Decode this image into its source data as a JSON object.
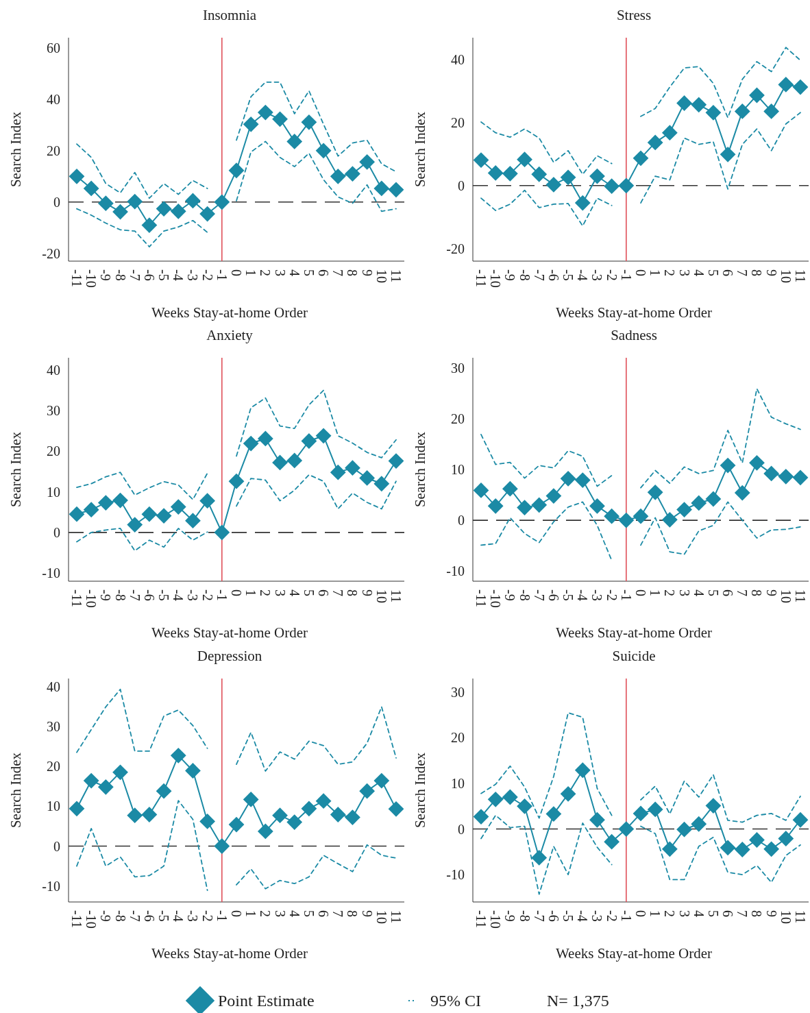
{
  "chart_data": [
    {
      "type": "line",
      "title": "Insomnia",
      "xlabel": "Weeks Stay-at-home Order",
      "ylabel": "Search Index",
      "categories": [
        "-11",
        "-10",
        "-9",
        "-8",
        "-7",
        "-6",
        "-5",
        "-4",
        "-3",
        "-2",
        "-1",
        "0",
        "1",
        "2",
        "3",
        "4",
        "5",
        "6",
        "7",
        "8",
        "9",
        "10",
        "11"
      ],
      "ylim": [
        -23,
        64
      ],
      "yticks": [
        -20,
        0,
        20,
        40,
        60
      ],
      "marker": "diamond",
      "grid": false,
      "series": [
        {
          "color": "#1b8aa5",
          "values": [
            10,
            5.3,
            -0.5,
            -3.8,
            0.2,
            -9,
            -2.6,
            -3.6,
            0.5,
            -4.6,
            0,
            12.3,
            30.3,
            34.9,
            32.3,
            23.6,
            31.1,
            20,
            10,
            11,
            15.6,
            5.3,
            4.8
          ]
        },
        {
          "color": "#1b8aa5",
          "line_style": "dashed",
          "marker": "none",
          "values": [
            22.6,
            17.4,
            7.2,
            3.6,
            11.5,
            1.5,
            7.2,
            3,
            8.4,
            5.3,
            null,
            24.1,
            41,
            46.7,
            46.7,
            34.4,
            43.3,
            30.3,
            17.9,
            23,
            24.1,
            14.9,
            11.8
          ]
        },
        {
          "color": "#1b8aa5",
          "line_style": "dashed",
          "marker": "none",
          "values": [
            -2.6,
            -5.1,
            -8.2,
            -10.8,
            -11.3,
            -17.4,
            -11.3,
            -9.7,
            -7.2,
            -11.8,
            null,
            0.5,
            19.5,
            23.6,
            17.4,
            13.8,
            19,
            8.7,
            2,
            -0.5,
            6.7,
            -3.6,
            -2.6
          ]
        }
      ],
      "ref_lines": [
        {
          "axis": "x",
          "value": "-1",
          "color": "#e0505a",
          "line_style": "solid"
        },
        {
          "axis": "y",
          "value": 0,
          "color": "#333333",
          "line_style": "dashed"
        }
      ]
    },
    {
      "type": "line",
      "title": "Stress",
      "xlabel": "Weeks Stay-at-home Order",
      "ylabel": "Search Index",
      "categories": [
        "-11",
        "-10",
        "-9",
        "-8",
        "-7",
        "-6",
        "-5",
        "-4",
        "-3",
        "-2",
        "-1",
        "0",
        "1",
        "2",
        "3",
        "4",
        "5",
        "6",
        "7",
        "8",
        "9",
        "10",
        "11"
      ],
      "ylim": [
        -24,
        47
      ],
      "yticks": [
        -20,
        0,
        20,
        40
      ],
      "marker": "diamond",
      "grid": false,
      "series": [
        {
          "color": "#1b8aa5",
          "values": [
            8.1,
            4,
            3.8,
            8.3,
            3.6,
            0.3,
            2.6,
            -5.5,
            3,
            -0.2,
            0,
            8.7,
            13.7,
            16.8,
            26.2,
            25.7,
            23.2,
            9.9,
            23.6,
            28.7,
            23.6,
            32.1,
            31.3
          ]
        },
        {
          "color": "#1b8aa5",
          "line_style": "dashed",
          "marker": "none",
          "values": [
            20.2,
            16.8,
            15.4,
            18,
            15.1,
            7.4,
            11.1,
            3.6,
            9.5,
            7,
            null,
            22,
            24.5,
            31.3,
            37.4,
            37.8,
            32.5,
            21.6,
            33.8,
            39.4,
            36.2,
            43.9,
            39.8
          ]
        },
        {
          "color": "#1b8aa5",
          "line_style": "dashed",
          "marker": "none",
          "values": [
            -4,
            -7.9,
            -5.9,
            -1.5,
            -7,
            -5.9,
            -5.7,
            -12.8,
            -4,
            -6.3,
            null,
            -5.5,
            3,
            1.8,
            15.1,
            13.1,
            13.9,
            -1.1,
            13.1,
            18,
            11.1,
            19.6,
            23.2
          ]
        }
      ],
      "ref_lines": [
        {
          "axis": "x",
          "value": "-1",
          "color": "#e0505a",
          "line_style": "solid"
        },
        {
          "axis": "y",
          "value": 0,
          "color": "#333333",
          "line_style": "dashed"
        }
      ]
    },
    {
      "type": "line",
      "title": "Anxiety",
      "xlabel": "Weeks Stay-at-home Order",
      "ylabel": "Search Index",
      "categories": [
        "-11",
        "-10",
        "-9",
        "-8",
        "-7",
        "-6",
        "-5",
        "-4",
        "-3",
        "-2",
        "-1",
        "0",
        "1",
        "2",
        "3",
        "4",
        "5",
        "6",
        "7",
        "8",
        "9",
        "10",
        "11"
      ],
      "ylim": [
        -12,
        43
      ],
      "yticks": [
        -10,
        0,
        10,
        20,
        30,
        40
      ],
      "marker": "diamond",
      "grid": false,
      "series": [
        {
          "color": "#1b8aa5",
          "values": [
            4.5,
            5.6,
            7.3,
            7.9,
            1.9,
            4.5,
            4.1,
            6.3,
            2.9,
            7.8,
            0,
            12.6,
            21.9,
            23.1,
            17.2,
            17.7,
            22.5,
            23.8,
            14.8,
            15.9,
            13.4,
            12,
            17.6
          ]
        },
        {
          "color": "#1b8aa5",
          "line_style": "dashed",
          "marker": "none",
          "values": [
            11.1,
            12,
            13.7,
            14.8,
            9.2,
            11,
            12.5,
            11.7,
            8.1,
            14.6,
            null,
            18.8,
            30.7,
            33.1,
            26.2,
            25.6,
            31.4,
            35,
            23.8,
            22,
            19.7,
            18.4,
            22.8
          ]
        },
        {
          "color": "#1b8aa5",
          "line_style": "dashed",
          "marker": "none",
          "values": [
            -2.3,
            0,
            0.6,
            1,
            -4.5,
            -1.9,
            -3.6,
            1,
            -1.9,
            0.1,
            null,
            6.5,
            13.3,
            12.9,
            7.8,
            10.4,
            14.2,
            12.6,
            5.8,
            9.7,
            7.4,
            5.8,
            12.6
          ]
        }
      ],
      "ref_lines": [
        {
          "axis": "x",
          "value": "-1",
          "color": "#e0505a",
          "line_style": "solid"
        },
        {
          "axis": "y",
          "value": 0,
          "color": "#333333",
          "line_style": "dashed"
        }
      ]
    },
    {
      "type": "line",
      "title": "Sadness",
      "xlabel": "Weeks Stay-at-home Order",
      "ylabel": "Search Index",
      "categories": [
        "-11",
        "-10",
        "-9",
        "-8",
        "-7",
        "-6",
        "-5",
        "-4",
        "-3",
        "-2",
        "-1",
        "0",
        "1",
        "2",
        "3",
        "4",
        "5",
        "6",
        "7",
        "8",
        "9",
        "10",
        "11"
      ],
      "ylim": [
        -12,
        32
      ],
      "yticks": [
        -10,
        0,
        10,
        20,
        30
      ],
      "marker": "diamond",
      "grid": false,
      "series": [
        {
          "color": "#1b8aa5",
          "values": [
            5.9,
            2.8,
            6.2,
            2.5,
            3,
            4.8,
            8.2,
            7.9,
            2.8,
            0.8,
            0,
            0.8,
            5.5,
            0.1,
            2.1,
            3.4,
            4.2,
            10.8,
            5.4,
            11.3,
            9.2,
            8.6,
            8.4
          ]
        },
        {
          "color": "#1b8aa5",
          "line_style": "dashed",
          "marker": "none",
          "values": [
            16.9,
            11,
            11.4,
            8.3,
            10.8,
            10.3,
            13.7,
            12.6,
            6.7,
            8.8,
            null,
            6.4,
            9.8,
            7.3,
            10.5,
            9.2,
            9.8,
            17.7,
            11.3,
            25.9,
            20.3,
            19,
            17.9
          ]
        },
        {
          "color": "#1b8aa5",
          "line_style": "dashed",
          "marker": "none",
          "values": [
            -4.9,
            -4.6,
            0.5,
            -2.6,
            -4.4,
            -0.3,
            2.6,
            3.6,
            -1,
            -7.9,
            null,
            -4.9,
            0.5,
            -6.2,
            -6.7,
            -2.1,
            -1,
            3.6,
            0,
            -3.5,
            -1.9,
            -1.8,
            -1.3
          ]
        }
      ],
      "ref_lines": [
        {
          "axis": "x",
          "value": "-1",
          "color": "#e0505a",
          "line_style": "solid"
        },
        {
          "axis": "y",
          "value": 0,
          "color": "#333333",
          "line_style": "dashed"
        }
      ]
    },
    {
      "type": "line",
      "title": "Depression",
      "xlabel": "Weeks Stay-at-home Order",
      "ylabel": "Search Index",
      "categories": [
        "-11",
        "-10",
        "-9",
        "-8",
        "-7",
        "-6",
        "-5",
        "-4",
        "-3",
        "-2",
        "-1",
        "0",
        "1",
        "2",
        "3",
        "4",
        "5",
        "6",
        "7",
        "8",
        "9",
        "10",
        "11"
      ],
      "ylim": [
        -14,
        42
      ],
      "yticks": [
        -10,
        0,
        10,
        20,
        30,
        40
      ],
      "marker": "diamond",
      "grid": false,
      "series": [
        {
          "color": "#1b8aa5",
          "values": [
            9.4,
            16.4,
            14.8,
            18.5,
            7.7,
            7.9,
            13.8,
            22.7,
            18.9,
            6.2,
            0,
            5.4,
            11.7,
            3.7,
            7.7,
            6,
            9.4,
            11.3,
            7.9,
            7.2,
            13.8,
            16.4,
            9.3
          ]
        },
        {
          "color": "#1b8aa5",
          "line_style": "dashed",
          "marker": "none",
          "values": [
            23.5,
            29.2,
            34.9,
            39.3,
            23.8,
            23.8,
            32.6,
            34.1,
            30.2,
            24.5,
            null,
            20.5,
            28.5,
            18.8,
            23.6,
            21.8,
            26.3,
            25.2,
            20.5,
            21.1,
            25.8,
            34.9,
            22.1
          ]
        },
        {
          "color": "#1b8aa5",
          "line_style": "dashed",
          "marker": "none",
          "values": [
            -5,
            4.4,
            -5,
            -2.7,
            -7.7,
            -7.4,
            -5,
            11.4,
            6.7,
            -11.1,
            null,
            -9.7,
            -5.7,
            -10.7,
            -8.6,
            -9.4,
            -7.7,
            -2.3,
            -4.4,
            -6.4,
            0.3,
            -2.3,
            -3
          ]
        }
      ],
      "ref_lines": [
        {
          "axis": "x",
          "value": "-1",
          "color": "#e0505a",
          "line_style": "solid"
        },
        {
          "axis": "y",
          "value": 0,
          "color": "#333333",
          "line_style": "dashed"
        }
      ]
    },
    {
      "type": "line",
      "title": "Suicide",
      "xlabel": "Weeks Stay-at-home Order",
      "ylabel": "Search Index",
      "categories": [
        "-11",
        "-10",
        "-9",
        "-8",
        "-7",
        "-6",
        "-5",
        "-4",
        "-3",
        "-2",
        "-1",
        "0",
        "1",
        "2",
        "3",
        "4",
        "5",
        "6",
        "7",
        "8",
        "9",
        "10",
        "11"
      ],
      "ylim": [
        -16,
        33
      ],
      "yticks": [
        -10,
        0,
        10,
        20,
        30
      ],
      "marker": "diamond",
      "grid": false,
      "legend": "bottom",
      "annotations": [
        "N= 1,375"
      ],
      "series": [
        {
          "name": "Point Estimate",
          "color": "#1b8aa5",
          "values": [
            2.7,
            6.5,
            7,
            5,
            -6.3,
            3.3,
            7.7,
            12.9,
            2,
            -2.8,
            0,
            3.4,
            4.3,
            -4.4,
            -0.1,
            1.1,
            5.1,
            -4.1,
            -4.5,
            -2.4,
            -4.4,
            -2.1,
            2
          ]
        },
        {
          "name": "95% CI",
          "color": "#1b8aa5",
          "line_style": "dashed",
          "marker": "none",
          "values": [
            7.8,
            9.8,
            13.8,
            9.2,
            2.4,
            11.5,
            25.5,
            24.5,
            8.9,
            3,
            null,
            6.4,
            9.4,
            3.3,
            10.5,
            7,
            11.9,
            1.9,
            1.5,
            3,
            3.4,
            1.9,
            7.2
          ]
        },
        {
          "color": "#1b8aa5",
          "line_style": "dashed",
          "marker": "none",
          "values": [
            -2.1,
            3,
            0.3,
            0.6,
            -14.3,
            -3.8,
            -10,
            1.3,
            -4,
            -7.8,
            null,
            0.6,
            -1,
            -11.1,
            -11.1,
            -3.8,
            -1.8,
            -9.5,
            -10,
            -8,
            -11.7,
            -5.8,
            -3.5
          ]
        }
      ],
      "ref_lines": [
        {
          "axis": "x",
          "value": "-1",
          "color": "#e0505a",
          "line_style": "solid"
        },
        {
          "axis": "y",
          "value": 0,
          "color": "#333333",
          "line_style": "dashed"
        }
      ]
    }
  ]
}
